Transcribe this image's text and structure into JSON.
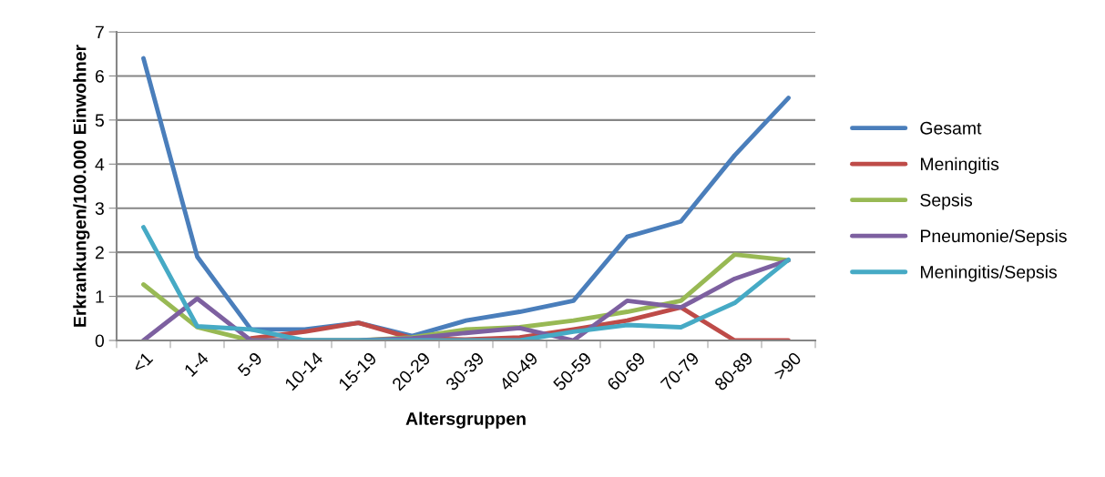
{
  "chart_data": {
    "type": "line",
    "xlabel": "Altersgruppen",
    "ylabel": "Erkrankungen/100.000 Einwohner",
    "categories": [
      "<1",
      "1-4",
      "5-9",
      "10-14",
      "15-19",
      "20-29",
      "30-39",
      "40-49",
      "50-59",
      "60-69",
      "70-79",
      "80-89",
      ">90"
    ],
    "ylim": [
      0,
      7
    ],
    "yticks": [
      0,
      1,
      2,
      3,
      4,
      5,
      6,
      7
    ],
    "grid": "y",
    "legend": "right",
    "marker": "none",
    "line_style": "solid",
    "series": [
      {
        "name": "Gesamt",
        "color": "#4a7ebb",
        "values": [
          6.4,
          1.9,
          0.25,
          0.25,
          0.4,
          0.1,
          0.45,
          0.65,
          0.9,
          2.35,
          2.7,
          4.2,
          5.5
        ]
      },
      {
        "name": "Meningitis",
        "color": "#be4b48",
        "values": [
          null,
          null,
          0.05,
          0.2,
          0.4,
          0.05,
          0.02,
          0.07,
          0.25,
          0.45,
          0.75,
          0,
          0
        ]
      },
      {
        "name": "Sepsis",
        "color": "#98b954",
        "values": [
          1.27,
          0.3,
          0,
          0,
          0,
          0.07,
          0.25,
          0.3,
          0.45,
          0.65,
          0.9,
          1.95,
          1.82
        ]
      },
      {
        "name": "Pneumonie/Sepsis",
        "color": "#7d60a0",
        "values": [
          0,
          0.95,
          0,
          0,
          0,
          0.05,
          0.17,
          0.28,
          0,
          0.9,
          0.75,
          1.4,
          1.82
        ]
      },
      {
        "name": "Meningitis/Sepsis",
        "color": "#46aac5",
        "values": [
          2.57,
          0.32,
          0.25,
          0,
          0,
          0,
          0,
          0,
          0.2,
          0.35,
          0.3,
          0.85,
          1.83
        ]
      }
    ]
  }
}
